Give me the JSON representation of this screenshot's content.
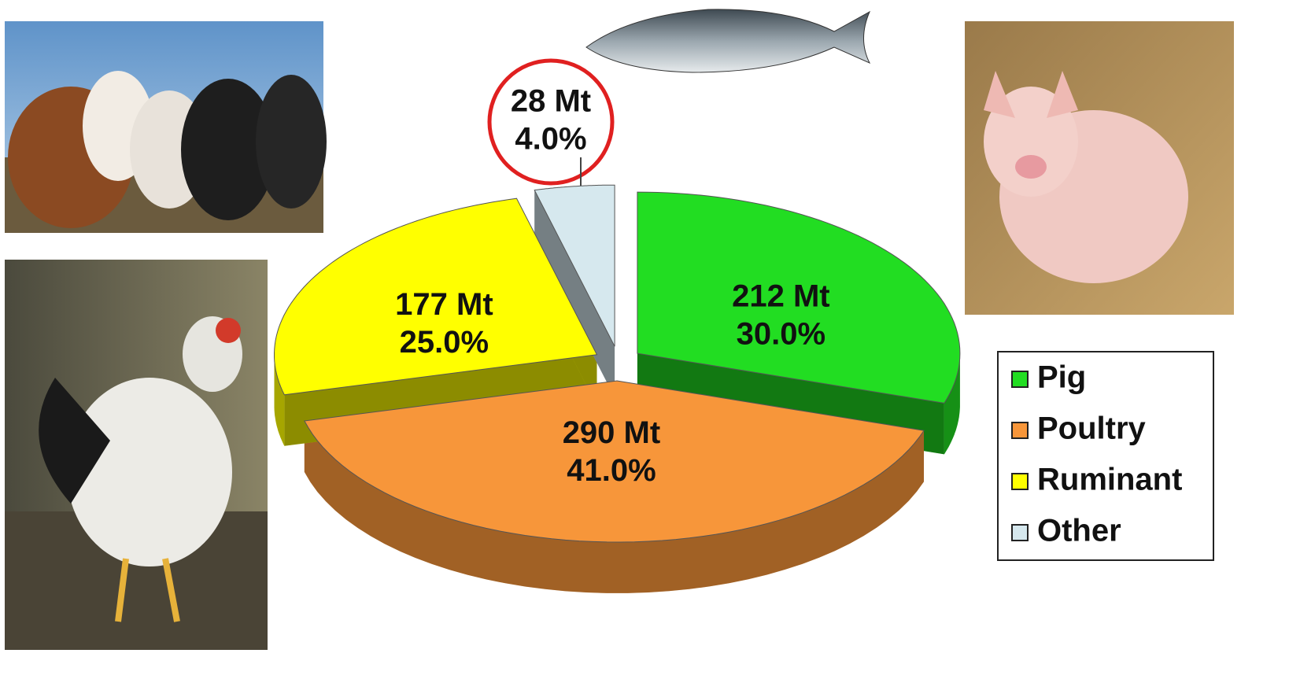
{
  "chart_data": {
    "type": "pie3d",
    "categories": [
      "Pig",
      "Poultry",
      "Ruminant",
      "Other"
    ],
    "values": [
      30.0,
      41.0,
      25.0,
      4.0
    ],
    "value_labels": [
      "30.0%",
      "41.0%",
      "25.0%",
      "4.0%"
    ],
    "amounts": [
      212,
      290,
      177,
      28
    ],
    "amount_labels": [
      "212 Mt",
      "290 Mt",
      "177 Mt",
      "28 Mt"
    ],
    "colors": [
      "#22dd22",
      "#f7963a",
      "#ffff00",
      "#d6e8ee"
    ],
    "legend": "right"
  }
}
